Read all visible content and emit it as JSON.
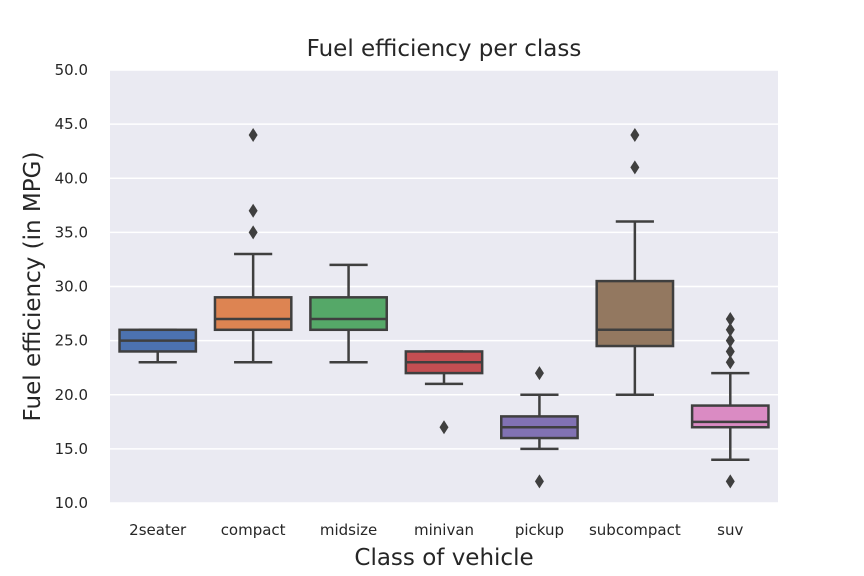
{
  "chart_data": {
    "type": "box",
    "title": "Fuel efficiency per class",
    "xlabel": "Class of vehicle",
    "ylabel": "Fuel efficiency (in MPG)",
    "ylim": [
      10.0,
      50.0
    ],
    "yticks": [
      "10.0",
      "15.0",
      "20.0",
      "25.0",
      "30.0",
      "35.0",
      "40.0",
      "45.0",
      "50.0"
    ],
    "grid": true,
    "categories": [
      "2seater",
      "compact",
      "midsize",
      "minivan",
      "pickup",
      "subcompact",
      "suv"
    ],
    "boxes": [
      {
        "name": "2seater",
        "color": "#4c72b0",
        "whisker_low": 23,
        "q1": 24,
        "median": 25,
        "q3": 26,
        "whisker_high": 26,
        "outliers": []
      },
      {
        "name": "compact",
        "color": "#dd8452",
        "whisker_low": 23,
        "q1": 26,
        "median": 27,
        "q3": 29,
        "whisker_high": 33,
        "outliers": [
          35,
          37,
          44
        ]
      },
      {
        "name": "midsize",
        "color": "#55a868",
        "whisker_low": 23,
        "q1": 26,
        "median": 27,
        "q3": 29,
        "whisker_high": 32,
        "outliers": []
      },
      {
        "name": "minivan",
        "color": "#c44e52",
        "whisker_low": 21,
        "q1": 22,
        "median": 23,
        "q3": 24,
        "whisker_high": 24,
        "outliers": [
          17
        ]
      },
      {
        "name": "pickup",
        "color": "#8172b3",
        "whisker_low": 15,
        "q1": 16,
        "median": 17,
        "q3": 18,
        "whisker_high": 20,
        "outliers": [
          12,
          22
        ]
      },
      {
        "name": "subcompact",
        "color": "#937860",
        "whisker_low": 20,
        "q1": 24.5,
        "median": 26,
        "q3": 30.5,
        "whisker_high": 36,
        "outliers": [
          41,
          44
        ]
      },
      {
        "name": "suv",
        "color": "#da8bc3",
        "whisker_low": 14,
        "q1": 17,
        "median": 17.5,
        "q3": 19,
        "whisker_high": 22,
        "outliers": [
          12,
          23,
          24,
          25,
          26,
          27
        ]
      }
    ]
  }
}
